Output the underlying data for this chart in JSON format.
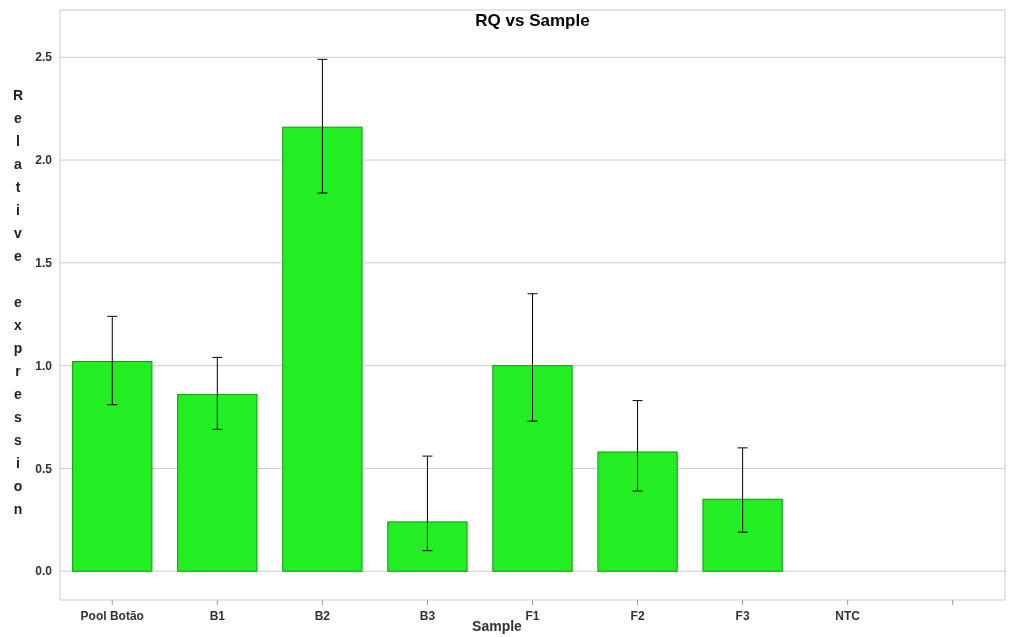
{
  "chart_data": {
    "type": "bar",
    "title": "RQ vs Sample",
    "xlabel": "Sample",
    "ylabel": "Relative expression",
    "categories": [
      "Pool Botão",
      "B1",
      "B2",
      "B3",
      "F1",
      "F2",
      "F3",
      "NTC",
      null
    ],
    "values": [
      1.02,
      0.86,
      2.16,
      0.24,
      1.0,
      0.58,
      0.35,
      null,
      null
    ],
    "errors": [
      [
        0.81,
        1.24
      ],
      [
        0.69,
        1.04
      ],
      [
        1.84,
        2.49
      ],
      [
        0.1,
        0.56
      ],
      [
        0.73,
        1.35
      ],
      [
        0.39,
        0.83
      ],
      [
        0.19,
        0.6
      ],
      null,
      null
    ],
    "color": "#22ee22",
    "ylim": [
      -0.14,
      2.73
    ],
    "yticks": [
      {
        "value": 0,
        "label": "0.0"
      },
      0.5,
      {
        "value": 1,
        "label": "1.0"
      },
      1.5,
      {
        "value": 2,
        "label": "2.0"
      },
      2.5
    ],
    "grid": "y"
  }
}
